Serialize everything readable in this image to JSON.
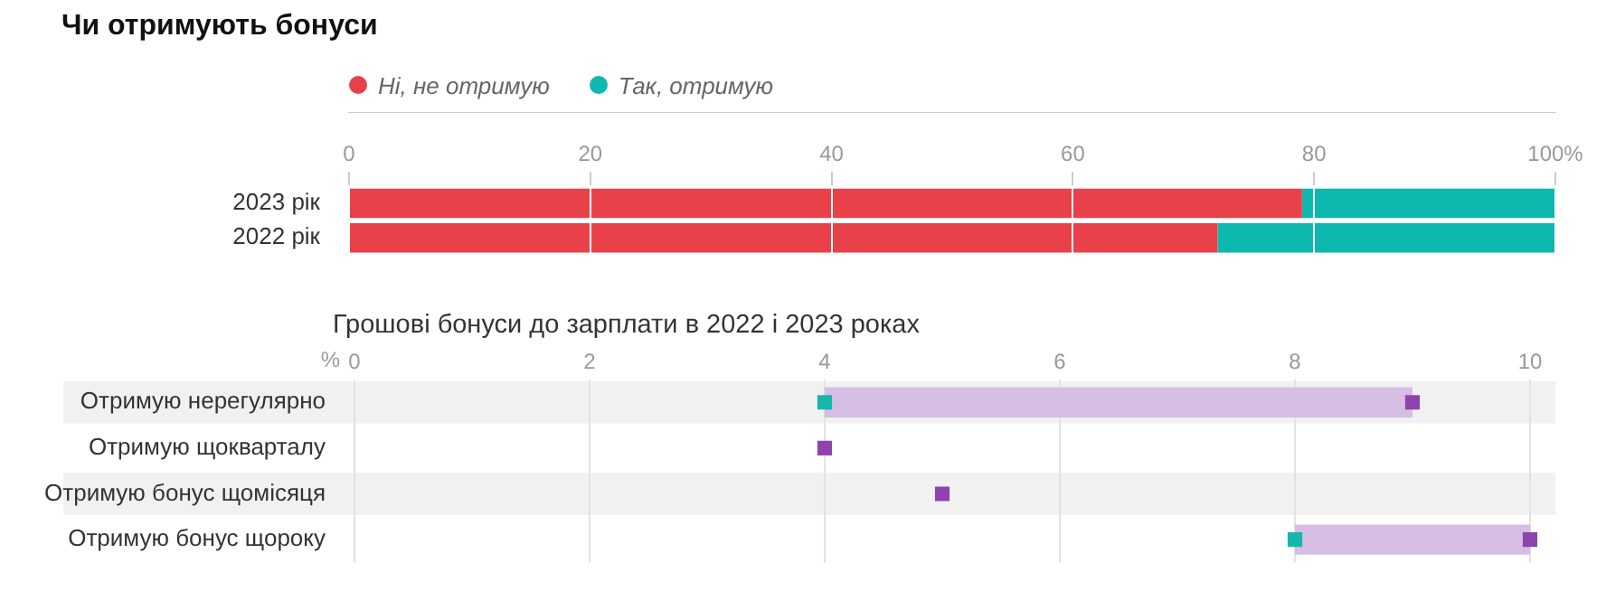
{
  "chart_data": [
    {
      "type": "bar",
      "title": "Чи отримують бонуси",
      "orientation": "horizontal",
      "stacked": true,
      "categories": [
        "2023 рік",
        "2022 рік"
      ],
      "series": [
        {
          "name": "Ні, не отримую",
          "color": "#e8414a",
          "values": [
            79,
            72
          ]
        },
        {
          "name": "Так, отримую",
          "color": "#0db8ae",
          "values": [
            21,
            28
          ]
        }
      ],
      "xlim": [
        0,
        100
      ],
      "xticks": [
        0,
        20,
        40,
        60,
        80,
        {
          "value": 100,
          "label": "100%"
        }
      ],
      "grid": "x",
      "legend": "top left"
    },
    {
      "type": "bar",
      "title": "Грошові бонуси до зарплати в 2022 і 2023 роках",
      "orientation": "horizontal",
      "xlabel": "%",
      "categories": [
        "Отримую нерегулярно",
        "Отримую щокварталу",
        "Отримую бонус щомісяця",
        "Отримую бонус щороку"
      ],
      "series": [
        {
          "color": "#d5bde3",
          "base": [
            4,
            null,
            null,
            8
          ],
          "values": [
            5,
            null,
            null,
            2
          ]
        },
        {
          "type": "scatter",
          "color": "#8e44ad",
          "values": [
            9,
            4,
            5,
            10
          ]
        },
        {
          "type": "scatter",
          "color": "#16b5ad",
          "values": [
            4,
            null,
            null,
            8
          ]
        }
      ],
      "xlim": [
        0,
        10
      ],
      "xticks": [
        0,
        2,
        4,
        6,
        8,
        10
      ],
      "grid": "x",
      "marker": "square"
    }
  ]
}
